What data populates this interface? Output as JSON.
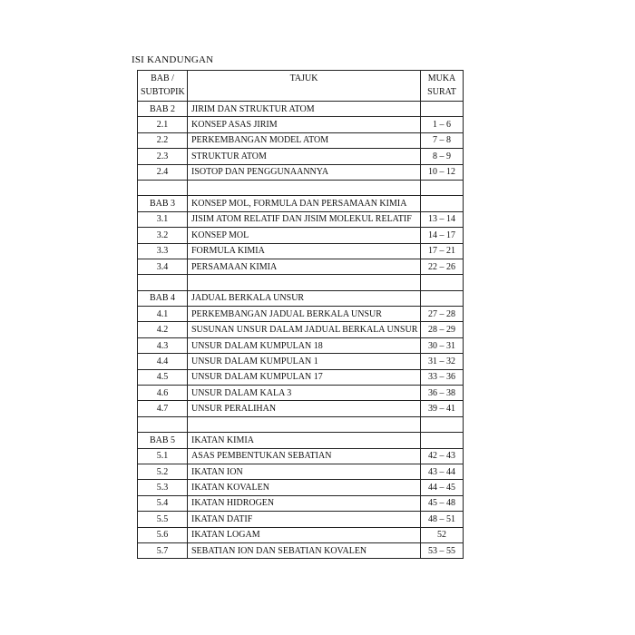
{
  "title": "ISI KANDUNGAN",
  "table": {
    "header": [
      [
        "BAB /",
        "SUBTOPIK"
      ],
      [
        "TAJUK"
      ],
      [
        "MUKA",
        "SURAT"
      ]
    ],
    "rows": [
      {
        "no": "BAB 2",
        "title": "JIRIM DAN STRUKTUR ATOM"
      },
      {
        "no": "2.1",
        "title": "KONSEP ASAS JIRIM",
        "pages": "1 – 6"
      },
      {
        "no": "2.2",
        "title": "PERKEMBANGAN MODEL ATOM",
        "pages": "7 – 8"
      },
      {
        "no": "2.3",
        "title": "STRUKTUR ATOM",
        "pages": "8 – 9"
      },
      {
        "no": "2.4",
        "title": "ISOTOP DAN PENGGUNAANNYA",
        "pages": "10 – 12"
      },
      null,
      {
        "no": "BAB 3",
        "title": "KONSEP MOL, FORMULA DAN PERSAMAAN KIMIA"
      },
      {
        "no": "3.1",
        "title": "JISIM ATOM RELATIF DAN JISIM MOLEKUL RELATIF",
        "pages": "13 – 14"
      },
      {
        "no": "3.2",
        "title": "KONSEP MOL",
        "pages": "14 – 17"
      },
      {
        "no": "3.3",
        "title": "FORMULA KIMIA",
        "pages": "17 – 21"
      },
      {
        "no": "3.4",
        "title": "PERSAMAAN KIMIA",
        "pages": "22 – 26"
      },
      null,
      {
        "no": "BAB 4",
        "title": "JADUAL BERKALA UNSUR"
      },
      {
        "no": "4.1",
        "title": "PERKEMBANGAN JADUAL BERKALA UNSUR",
        "pages": "27 – 28"
      },
      {
        "no": "4.2",
        "title": "SUSUNAN UNSUR DALAM JADUAL BERKALA UNSUR",
        "pages": "28 – 29"
      },
      {
        "no": "4.3",
        "title": "UNSUR DALAM KUMPULAN 18",
        "pages": "30 – 31"
      },
      {
        "no": "4.4",
        "title": "UNSUR DALAM KUMPULAN 1",
        "pages": "31 – 32"
      },
      {
        "no": "4.5",
        "title": "UNSUR DALAM KUMPULAN 17",
        "pages": "33 – 36"
      },
      {
        "no": "4.6",
        "title": "UNSUR DALAM KALA 3",
        "pages": "36 – 38"
      },
      {
        "no": "4.7",
        "title": "UNSUR PERALIHAN",
        "pages": "39 – 41"
      },
      null,
      {
        "no": "BAB 5",
        "title": "IKATAN KIMIA"
      },
      {
        "no": "5.1",
        "title": "ASAS PEMBENTUKAN SEBATIAN",
        "pages": "42 – 43"
      },
      {
        "no": "5.2",
        "title": "IKATAN ION",
        "pages": "43 – 44"
      },
      {
        "no": "5.3",
        "title": "IKATAN KOVALEN",
        "pages": "44 – 45"
      },
      {
        "no": "5.4",
        "title": "IKATAN HIDROGEN",
        "pages": "45 – 48"
      },
      {
        "no": "5.5",
        "title": "IKATAN DATIF",
        "pages": "48 – 51"
      },
      {
        "no": "5.6",
        "title": "IKATAN LOGAM",
        "pages": "52"
      },
      {
        "no": "5.7",
        "title": "SEBATIAN ION DAN SEBATIAN KOVALEN",
        "pages": "53 – 55"
      }
    ]
  }
}
